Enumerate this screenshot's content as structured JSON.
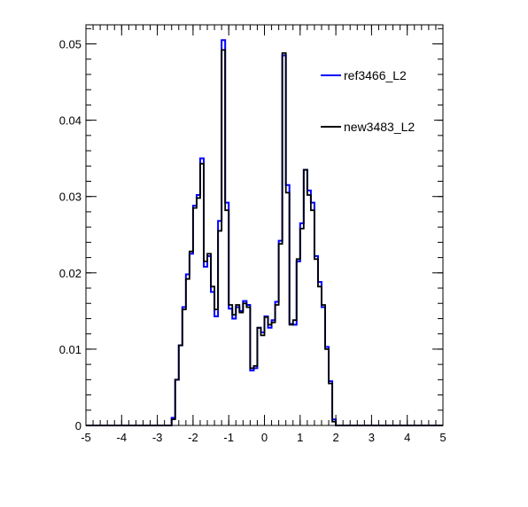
{
  "chart_data": {
    "type": "histogram",
    "title": "",
    "xlabel": "",
    "ylabel": "",
    "xlim": [
      -5,
      5
    ],
    "ylim": [
      0,
      0.0525
    ],
    "xticks": [
      -5,
      -4,
      -3,
      -2,
      -1,
      0,
      1,
      2,
      3,
      4,
      5
    ],
    "xtick_labels": [
      "-5",
      "-4",
      "-3",
      "-2",
      "-1",
      "0",
      "1",
      "2",
      "3",
      "4",
      "5"
    ],
    "yticks": [
      0,
      0.01,
      0.02,
      0.03,
      0.04,
      0.05
    ],
    "ytick_labels": [
      "0",
      "0.01",
      "0.02",
      "0.03",
      "0.04",
      "0.05"
    ],
    "grid": false,
    "legend_position": "top-right",
    "bin_edges_start": -2.6,
    "bin_width": 0.1,
    "series": [
      {
        "name": "ref3466_L2",
        "color": "#0000ff",
        "values": [
          0.001,
          0.006,
          0.0105,
          0.0155,
          0.0198,
          0.0225,
          0.0288,
          0.0302,
          0.035,
          0.0208,
          0.0222,
          0.0175,
          0.0143,
          0.0268,
          0.0505,
          0.0292,
          0.0153,
          0.014,
          0.0155,
          0.015,
          0.0163,
          0.0158,
          0.0072,
          0.0075,
          0.0128,
          0.0122,
          0.0143,
          0.0128,
          0.0138,
          0.0162,
          0.0242,
          0.0485,
          0.0315,
          0.0133,
          0.0132,
          0.0215,
          0.0265,
          0.0335,
          0.0308,
          0.0292,
          0.0222,
          0.0188,
          0.0155,
          0.0103,
          0.0058,
          0.0008
        ]
      },
      {
        "name": "new3483_L2",
        "color": "#000000",
        "values": [
          0.0008,
          0.006,
          0.0105,
          0.0152,
          0.0192,
          0.0228,
          0.0285,
          0.0298,
          0.0343,
          0.0215,
          0.0225,
          0.0182,
          0.0152,
          0.0255,
          0.0492,
          0.0282,
          0.0158,
          0.0145,
          0.0158,
          0.0148,
          0.016,
          0.0155,
          0.0075,
          0.0078,
          0.0128,
          0.0118,
          0.0142,
          0.0132,
          0.0135,
          0.0158,
          0.0238,
          0.0488,
          0.0305,
          0.0132,
          0.0138,
          0.0218,
          0.0258,
          0.0335,
          0.0302,
          0.0282,
          0.0218,
          0.0182,
          0.0158,
          0.01,
          0.0055,
          0.0005
        ]
      }
    ]
  }
}
